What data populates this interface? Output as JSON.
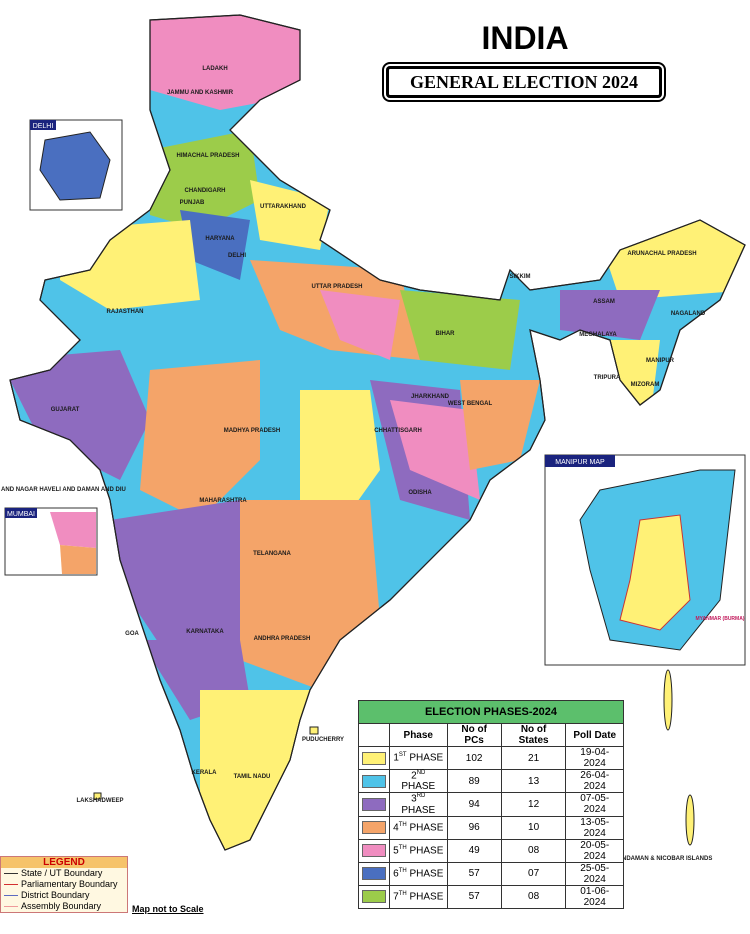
{
  "header": {
    "title": "INDIA",
    "subtitle": "GENERAL ELECTION 2024"
  },
  "insets": {
    "delhi": "DELHI",
    "mumbai": "MUMBAI",
    "manipur": "MANIPUR MAP",
    "myanmar": "MYANMAR (BURMA)"
  },
  "labels": [
    "LADAKH",
    "JAMMU AND KASHMIR",
    "HIMACHAL PRADESH",
    "CHANDIGARH",
    "PUNJAB",
    "UTTARAKHAND",
    "HARYANA",
    "DELHI",
    "RAJASTHAN",
    "UTTAR PRADESH",
    "SIKKIM",
    "ARUNACHAL PRADESH",
    "ASSAM",
    "NAGALAND",
    "MEGHALAYA",
    "MANIPUR",
    "TRIPURA",
    "MIZORAM",
    "BIHAR",
    "JHARKHAND",
    "WEST BENGAL",
    "GUJARAT",
    "MADHYA PRADESH",
    "CHHATTISGARH",
    "ODISHA",
    "DADRA AND NAGAR HAVELI AND DAMAN AND DIU",
    "MAHARASHTRA",
    "TELANGANA",
    "GOA",
    "ANDHRA PRADESH",
    "KARNATAKA",
    "PUDUCHERRY",
    "KERALA",
    "TAMIL NADU",
    "LAKSHADWEEP",
    "ANDAMAN & NICOBAR ISLANDS"
  ],
  "table": {
    "title": "ELECTION PHASES-2024",
    "columns": [
      "Phase",
      "No of PCs",
      "No of States",
      "Poll Date"
    ],
    "rows": [
      {
        "color": "#fff176",
        "number": "1",
        "suffix": "ST",
        "word": "PHASE",
        "pcs": 102,
        "states": "21",
        "date": "19-04-2024"
      },
      {
        "color": "#4fc3e8",
        "number": "2",
        "suffix": "ND",
        "word": "PHASE",
        "pcs": 89,
        "states": "13",
        "date": "26-04-2024"
      },
      {
        "color": "#8e6bbf",
        "number": "3",
        "suffix": "RD",
        "word": "PHASE",
        "pcs": 94,
        "states": "12",
        "date": "07-05-2024"
      },
      {
        "color": "#f4a469",
        "number": "4",
        "suffix": "TH",
        "word": "PHASE",
        "pcs": 96,
        "states": "10",
        "date": "13-05-2024"
      },
      {
        "color": "#f08dc0",
        "number": "5",
        "suffix": "TH",
        "word": "PHASE",
        "pcs": 49,
        "states": "08",
        "date": "20-05-2024"
      },
      {
        "color": "#4a6fc0",
        "number": "6",
        "suffix": "TH",
        "word": "PHASE",
        "pcs": 57,
        "states": "07",
        "date": "25-05-2024"
      },
      {
        "color": "#9ccc4a",
        "number": "7",
        "suffix": "TH",
        "word": "PHASE",
        "pcs": 57,
        "states": "08",
        "date": "01-06-2024"
      }
    ]
  },
  "legend": {
    "title": "LEGEND",
    "items": [
      {
        "label": "State / UT Boundary",
        "color": "#333333"
      },
      {
        "label": "Parliamentary Boundary",
        "color": "#d32f2f"
      },
      {
        "label": "District Boundary",
        "color": "#5c6bc0"
      },
      {
        "label": "Assembly Boundary",
        "color": "#ef9a9a"
      }
    ]
  },
  "note": "Map not to Scale"
}
